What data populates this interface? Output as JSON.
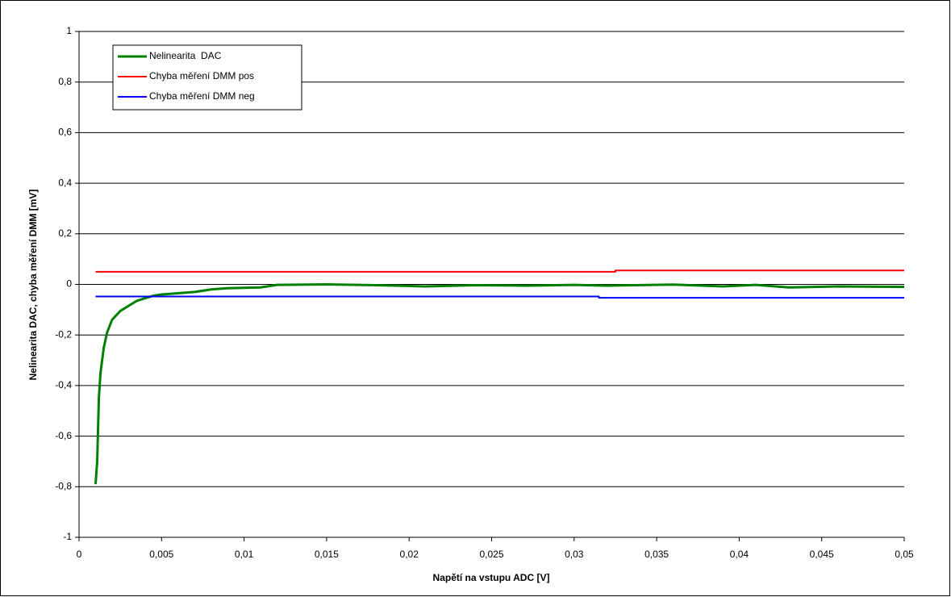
{
  "chart_data": {
    "type": "line",
    "x_label": "Napětí na vstupu ADC [V]",
    "y_label": "Nelinearita DAC, chyba měření DMM [mV]",
    "xlim": [
      0,
      0.05
    ],
    "xticks": [
      0,
      {
        "value": 0.005,
        "label": "0,005"
      },
      {
        "value": 0.01,
        "label": "0,01"
      },
      {
        "value": 0.015,
        "label": "0,015"
      },
      {
        "value": 0.02,
        "label": "0,02"
      },
      {
        "value": 0.025,
        "label": "0,025"
      },
      {
        "value": 0.03,
        "label": "0,03"
      },
      {
        "value": 0.035,
        "label": "0,035"
      },
      {
        "value": 0.04,
        "label": "0,04"
      },
      {
        "value": 0.045,
        "label": "0,045"
      },
      {
        "value": 0.05,
        "label": "0,05"
      }
    ],
    "ylim": [
      -1,
      1
    ],
    "yticks": [
      -1,
      {
        "value": -0.8,
        "label": "-0,8"
      },
      {
        "value": -0.6,
        "label": "-0,6"
      },
      {
        "value": -0.4,
        "label": "-0,4"
      },
      {
        "value": -0.2,
        "label": "-0,2"
      },
      0,
      {
        "value": 0.2,
        "label": "0,2"
      },
      {
        "value": 0.4,
        "label": "0,4"
      },
      {
        "value": 0.6,
        "label": "0,6"
      },
      {
        "value": 0.8,
        "label": "0,8"
      },
      1
    ],
    "grid": true,
    "legend": "upper left",
    "series": [
      {
        "name": "Nelinearita  DAC",
        "color": "#008000",
        "x": [
          0.001,
          0.0011,
          0.0012,
          0.0013,
          0.0015,
          0.0017,
          0.002,
          0.0025,
          0.003,
          0.0035,
          0.004,
          0.0045,
          0.005,
          0.006,
          0.007,
          0.008,
          0.009,
          0.011,
          0.012,
          0.015,
          0.018,
          0.021,
          0.024,
          0.027,
          0.03,
          0.032,
          0.036,
          0.039,
          0.041,
          0.043,
          0.046,
          0.05
        ],
        "values": [
          -0.79,
          -0.7,
          -0.45,
          -0.35,
          -0.25,
          -0.19,
          -0.14,
          -0.105,
          -0.085,
          -0.065,
          -0.055,
          -0.045,
          -0.04,
          -0.035,
          -0.03,
          -0.02,
          -0.015,
          -0.012,
          -0.002,
          0,
          -0.003,
          -0.008,
          -0.003,
          -0.005,
          -0.002,
          -0.005,
          -0.001,
          -0.008,
          -0.002,
          -0.012,
          -0.008,
          -0.01
        ]
      },
      {
        "name": "Chyba měření DMM pos",
        "color": "#ff0000",
        "x": [
          0.001,
          0.0325,
          0.0325,
          0.05
        ],
        "values": [
          0.05,
          0.05,
          0.055,
          0.055
        ]
      },
      {
        "name": "Chyba měření DMM neg",
        "color": "#0000ff",
        "x": [
          0.001,
          0.0315,
          0.0315,
          0.05
        ],
        "values": [
          -0.048,
          -0.048,
          -0.053,
          -0.053
        ]
      }
    ]
  }
}
